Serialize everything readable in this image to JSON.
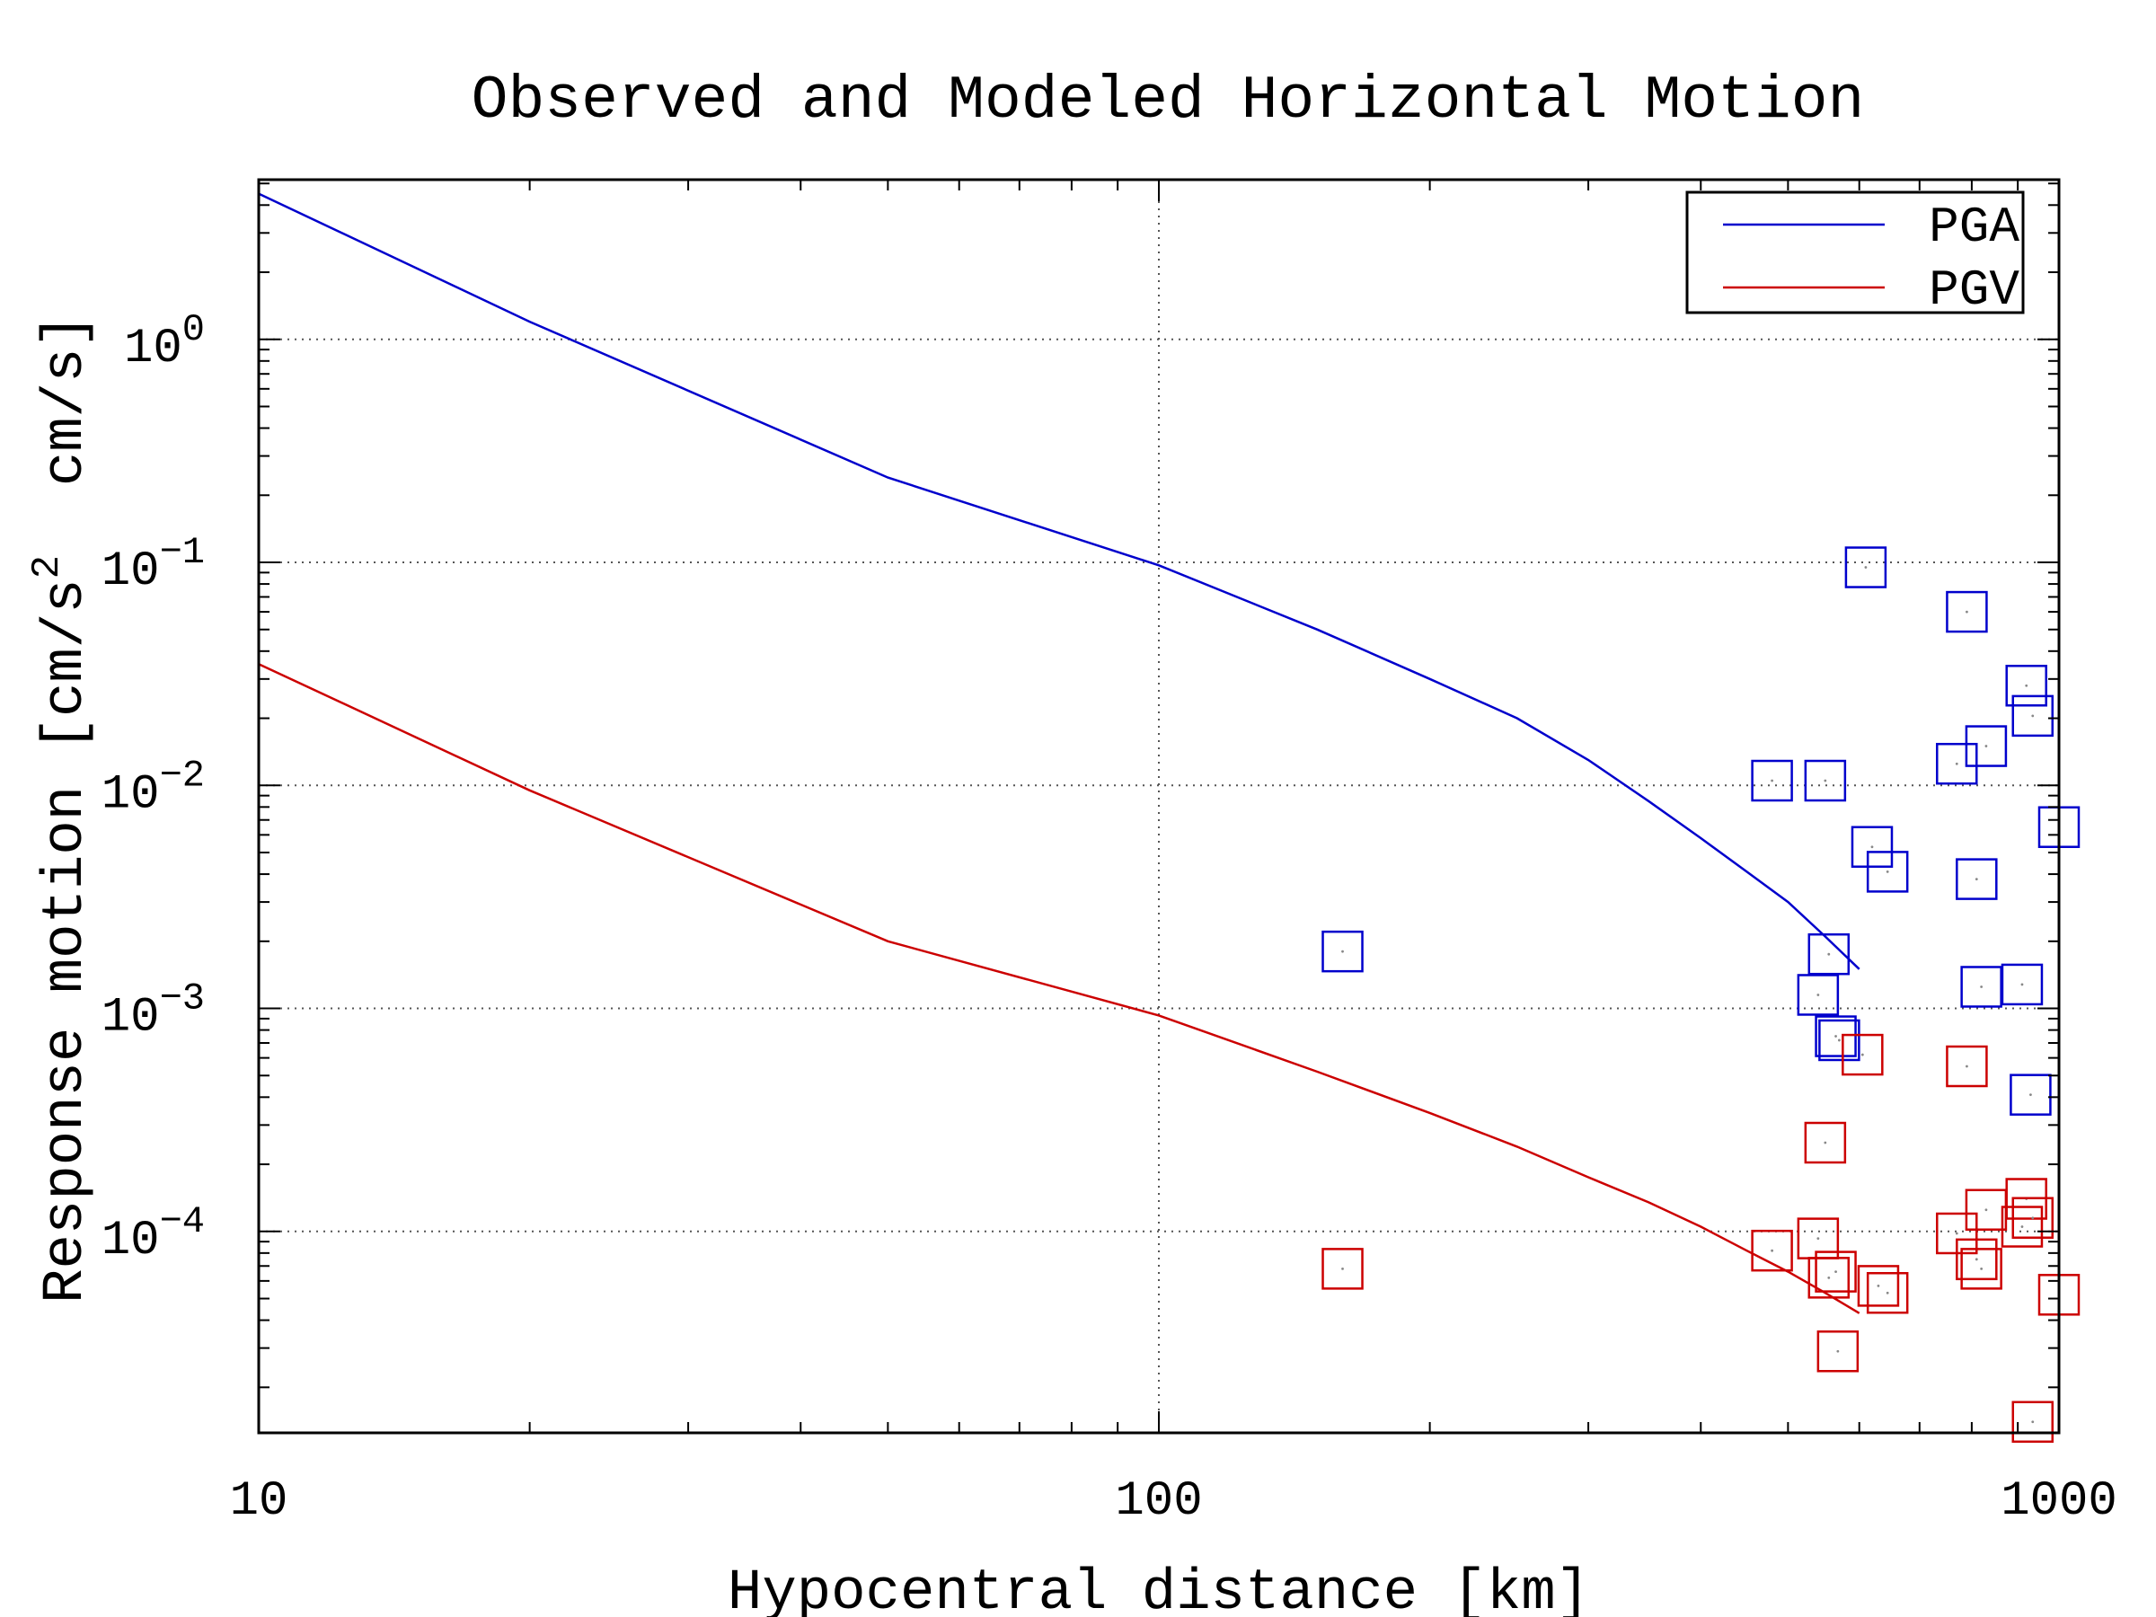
{
  "chart_data": {
    "type": "scatter",
    "title": "Observed and Modeled Horizontal Motion",
    "xlabel": "Hypocentral distance [km]",
    "ylabel": "Response motion [cm/s²  cm/s]",
    "xscale": "log",
    "yscale": "log",
    "xlim": [
      10,
      1000
    ],
    "ylim": [
      1.25e-05,
      5.2
    ],
    "x_ticks": [
      {
        "value": 10,
        "label": "10"
      },
      {
        "value": 100,
        "label": "100"
      },
      {
        "value": 1000,
        "label": "1000"
      }
    ],
    "y_ticks": [
      {
        "value": 1,
        "mantissa": "10",
        "exponent": "0"
      },
      {
        "value": 0.1,
        "mantissa": "10",
        "exponent": "−1"
      },
      {
        "value": 0.01,
        "mantissa": "10",
        "exponent": "−2"
      },
      {
        "value": 0.001,
        "mantissa": "10",
        "exponent": "−3"
      },
      {
        "value": 0.0001,
        "mantissa": "10",
        "exponent": "−4"
      }
    ],
    "grid": true,
    "legend_position": "top-right",
    "series": [
      {
        "name": "PGA",
        "color": "#0000cc",
        "model_curve": [
          [
            10,
            4.5
          ],
          [
            20,
            1.2
          ],
          [
            50,
            0.24
          ],
          [
            100,
            0.097
          ],
          [
            150,
            0.05
          ],
          [
            200,
            0.03
          ],
          [
            250,
            0.02
          ],
          [
            300,
            0.013
          ],
          [
            350,
            0.0085
          ],
          [
            400,
            0.0058
          ],
          [
            450,
            0.0041
          ],
          [
            500,
            0.003
          ],
          [
            550,
            0.0021
          ],
          [
            600,
            0.0015
          ]
        ],
        "observations": [
          [
            160,
            0.0018
          ],
          [
            480,
            0.0105
          ],
          [
            550,
            0.0105
          ],
          [
            540,
            0.00115
          ],
          [
            555,
            0.00175
          ],
          [
            565,
            0.00075
          ],
          [
            570,
            0.00072
          ],
          [
            610,
            0.095
          ],
          [
            620,
            0.0053
          ],
          [
            645,
            0.0041
          ],
          [
            770,
            0.0125
          ],
          [
            790,
            0.06
          ],
          [
            810,
            0.0038
          ],
          [
            820,
            0.00125
          ],
          [
            830,
            0.015
          ],
          [
            910,
            0.00128
          ],
          [
            920,
            0.028
          ],
          [
            935,
            0.0205
          ],
          [
            930,
            0.00041
          ],
          [
            1000,
            0.0065
          ]
        ]
      },
      {
        "name": "PGV",
        "color": "#cc0000",
        "model_curve": [
          [
            10,
            0.035
          ],
          [
            20,
            0.0095
          ],
          [
            50,
            0.002
          ],
          [
            100,
            0.00093
          ],
          [
            150,
            0.00052
          ],
          [
            200,
            0.00034
          ],
          [
            250,
            0.00024
          ],
          [
            300,
            0.000175
          ],
          [
            350,
            0.000135
          ],
          [
            400,
            0.000105
          ],
          [
            450,
            8.2e-05
          ],
          [
            500,
            6.6e-05
          ],
          [
            550,
            5.3e-05
          ],
          [
            600,
            4.3e-05
          ]
        ],
        "observations": [
          [
            160,
            6.8e-05
          ],
          [
            480,
            8.2e-05
          ],
          [
            540,
            9.3e-05
          ],
          [
            550,
            0.00025
          ],
          [
            555,
            6.2e-05
          ],
          [
            565,
            6.6e-05
          ],
          [
            568,
            2.9e-05
          ],
          [
            605,
            0.00062
          ],
          [
            630,
            5.7e-05
          ],
          [
            645,
            5.3e-05
          ],
          [
            770,
            9.8e-05
          ],
          [
            790,
            0.00055
          ],
          [
            810,
            7.5e-05
          ],
          [
            820,
            6.8e-05
          ],
          [
            830,
            0.000125
          ],
          [
            910,
            0.000105
          ],
          [
            920,
            0.00014
          ],
          [
            935,
            0.000115
          ],
          [
            935,
            1.4e-05
          ],
          [
            1000,
            5.2e-05
          ]
        ]
      }
    ]
  }
}
